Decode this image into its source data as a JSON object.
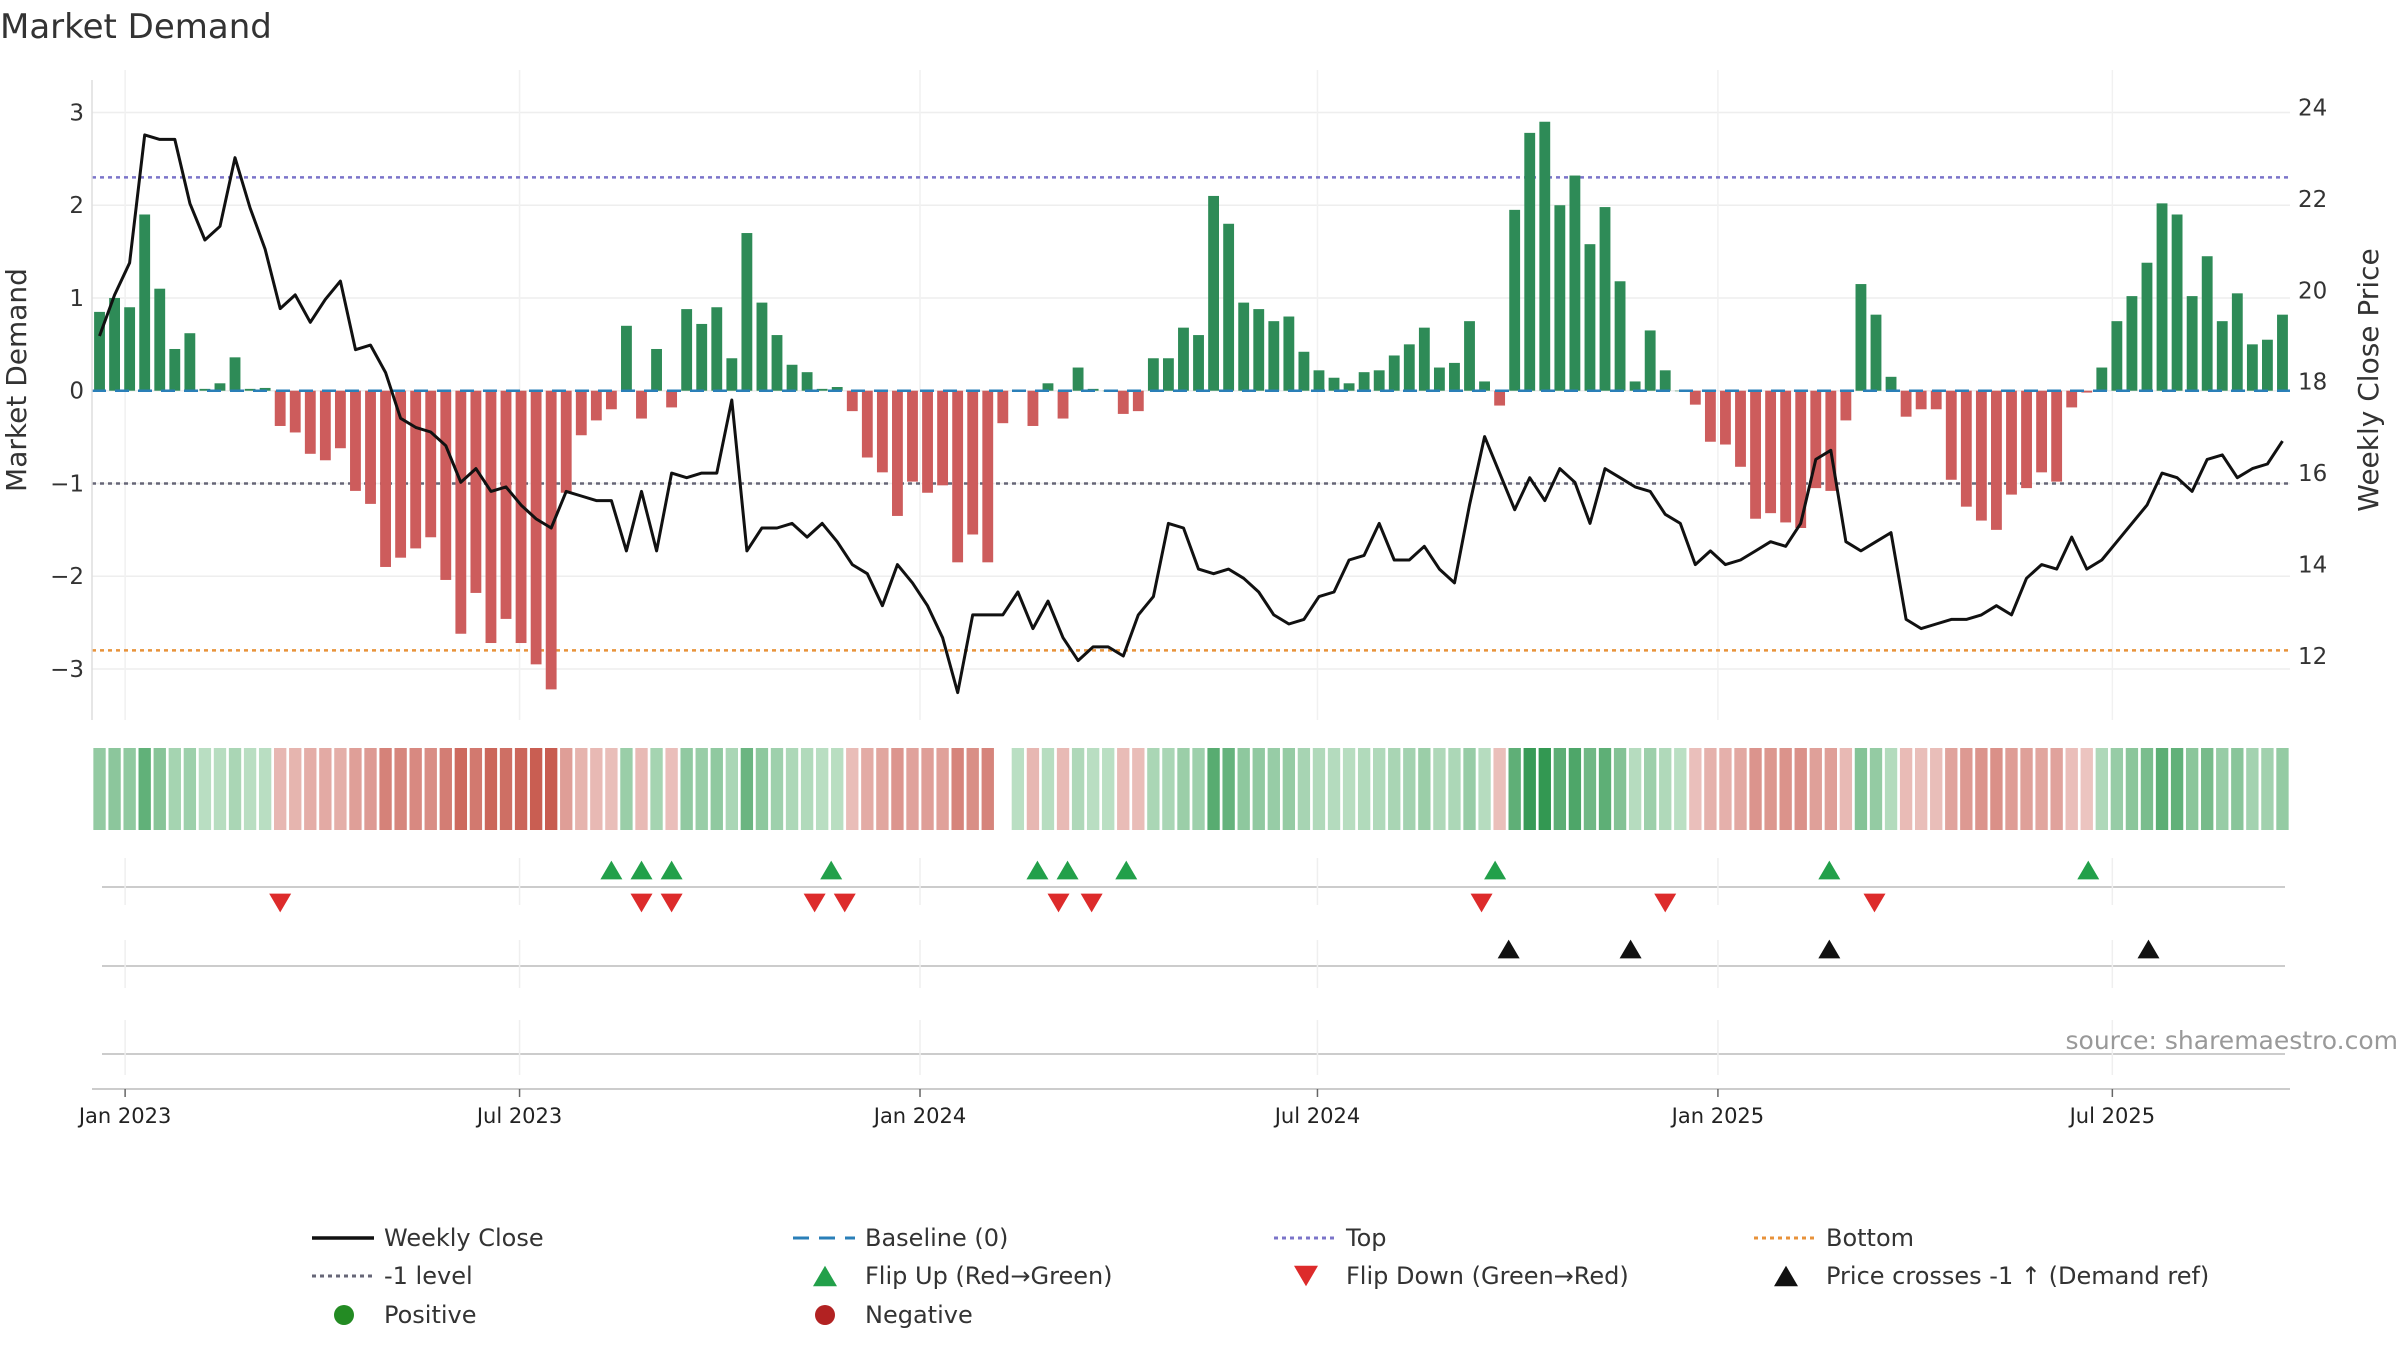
{
  "chart_data": {
    "type": "bar",
    "title": "Market Demand",
    "ylabel_left": "Market Demand",
    "ylabel_right": "Weekly Close Price",
    "ylim_left": [
      -3.55,
      3.35
    ],
    "ylim_right": [
      10.6,
      24.6
    ],
    "yticks_left": [
      3,
      2,
      1,
      0,
      -1,
      -2,
      -3
    ],
    "yticks_left_labels": [
      "3",
      "2",
      "1",
      "0",
      "−1",
      "−2",
      "−3"
    ],
    "yticks_right": [
      24,
      22,
      20,
      18,
      16,
      14,
      12
    ],
    "yticks_right_labels": [
      "24",
      "22",
      "20",
      "18",
      "16",
      "14",
      "12"
    ],
    "x_start_week_offset_days": -5,
    "x_range_weeks": [
      0,
      146
    ],
    "x_ticks": [
      {
        "label": "Jan 2023",
        "week": 2.2
      },
      {
        "label": "Jul 2023",
        "week": 28.4
      },
      {
        "label": "Jan 2024",
        "week": 55.0
      },
      {
        "label": "Jul 2024",
        "week": 81.4
      },
      {
        "label": "Jan 2025",
        "week": 108.0
      },
      {
        "label": "Jul 2025",
        "week": 134.2
      }
    ],
    "reference_lines": {
      "top": {
        "value": 2.3,
        "color": "#7b74c9"
      },
      "minus_one": {
        "value": -1.0,
        "color": "#666677"
      },
      "bottom": {
        "value": -2.8,
        "color": "#e8923a"
      },
      "baseline": {
        "value": 0,
        "color": "#2a7fb8"
      }
    },
    "demand": [
      0.85,
      1.0,
      0.9,
      1.9,
      1.1,
      0.45,
      0.62,
      0.02,
      0.08,
      0.36,
      0.02,
      0.03,
      -0.38,
      -0.45,
      -0.68,
      -0.75,
      -0.62,
      -1.08,
      -1.22,
      -1.9,
      -1.8,
      -1.7,
      -1.58,
      -2.04,
      -2.62,
      -2.18,
      -2.72,
      -2.46,
      -2.72,
      -2.95,
      -3.22,
      -1.1,
      -0.48,
      -0.32,
      -0.2,
      0.7,
      -0.3,
      0.45,
      -0.18,
      0.88,
      0.72,
      0.9,
      0.35,
      1.7,
      0.95,
      0.6,
      0.28,
      0.2,
      0.02,
      0.04,
      -0.22,
      -0.72,
      -0.88,
      -1.35,
      -0.98,
      -1.1,
      -1.02,
      -1.85,
      -1.55,
      -1.85,
      -0.35,
      0.0,
      -0.38,
      0.08,
      -0.3,
      0.25,
      0.02,
      0.0,
      -0.25,
      -0.22,
      0.35,
      0.35,
      0.68,
      0.6,
      2.1,
      1.8,
      0.95,
      0.88,
      0.75,
      0.8,
      0.42,
      0.22,
      0.14,
      0.08,
      0.2,
      0.22,
      0.38,
      0.5,
      0.68,
      0.25,
      0.3,
      0.75,
      0.1,
      -0.16,
      1.95,
      2.78,
      2.9,
      2.0,
      2.32,
      1.58,
      1.98,
      1.18,
      0.1,
      0.65,
      0.22,
      0.0,
      -0.15,
      -0.55,
      -0.58,
      -0.82,
      -1.38,
      -1.32,
      -1.42,
      -1.48,
      -1.05,
      -1.08,
      -0.32,
      1.15,
      0.82,
      0.15,
      -0.28,
      -0.2,
      -0.2,
      -0.96,
      -1.25,
      -1.4,
      -1.5,
      -1.12,
      -1.05,
      -0.88,
      -0.98,
      -0.18,
      -0.02,
      0.25,
      0.75,
      1.02,
      1.38,
      2.02,
      1.9,
      1.02,
      1.45,
      0.75,
      1.05,
      0.5,
      0.55,
      0.82
    ],
    "price": [
      19.0,
      19.9,
      20.6,
      23.4,
      23.3,
      23.3,
      21.9,
      21.1,
      21.4,
      22.9,
      21.8,
      20.9,
      19.6,
      19.9,
      19.3,
      19.8,
      20.2,
      18.7,
      18.8,
      18.2,
      17.2,
      17.0,
      16.9,
      16.6,
      15.8,
      16.1,
      15.6,
      15.7,
      15.3,
      15.0,
      14.8,
      15.6,
      15.5,
      15.4,
      15.4,
      14.3,
      15.6,
      14.3,
      16.0,
      15.9,
      16.0,
      16.0,
      17.6,
      14.3,
      14.8,
      14.8,
      14.9,
      14.6,
      14.9,
      14.5,
      14.0,
      13.8,
      13.1,
      14.0,
      13.6,
      13.1,
      12.4,
      11.2,
      12.9,
      12.9,
      12.9,
      13.4,
      12.6,
      13.2,
      12.4,
      11.9,
      12.2,
      12.2,
      12.0,
      12.9,
      13.3,
      14.9,
      14.8,
      13.9,
      13.8,
      13.9,
      13.7,
      13.4,
      12.9,
      12.7,
      12.8,
      13.3,
      13.4,
      14.1,
      14.2,
      14.9,
      14.1,
      14.1,
      14.4,
      13.9,
      13.6,
      15.3,
      16.8,
      16.0,
      15.2,
      15.9,
      15.4,
      16.1,
      15.8,
      14.9,
      16.1,
      15.9,
      15.7,
      15.6,
      15.1,
      14.9,
      14.0,
      14.3,
      14.0,
      14.1,
      14.3,
      14.5,
      14.4,
      14.9,
      16.3,
      16.5,
      14.5,
      14.3,
      14.5,
      14.7,
      12.8,
      12.6,
      12.7,
      12.8,
      12.8,
      12.9,
      13.1,
      12.9,
      13.7,
      14.0,
      13.9,
      14.6,
      13.9,
      14.1,
      14.5,
      14.9,
      15.3,
      16.0,
      15.9,
      15.6,
      16.3,
      16.4,
      15.9,
      16.1,
      16.2,
      16.7
    ],
    "heat_strip_note": "color strip under bars: green intensity for positive, red for negative",
    "heat_strip_gap_weeks": [
      60
    ],
    "flip_up_weeks": [
      34.5,
      36.5,
      38.5,
      49.1,
      62.8,
      64.8,
      68.7,
      93.2,
      115.4,
      132.6
    ],
    "flip_down_weeks": [
      12.5,
      36.5,
      38.5,
      48.0,
      50.0,
      64.2,
      66.4,
      92.3,
      104.5,
      118.4
    ],
    "price_cross_weeks": [
      94.1,
      102.2,
      115.4,
      136.6
    ],
    "colors": {
      "positive": "#2e8b57",
      "negative": "#cd5c5c",
      "price_line": "#111111",
      "flip_up": "#22a04a",
      "flip_down": "#dd2b2b",
      "price_cross": "#111111",
      "positive_dot": "#238b23",
      "negative_dot": "#b22222"
    },
    "legend": [
      {
        "label": "Weekly Close",
        "kind": "line-solid",
        "color": "#111111"
      },
      {
        "label": "Baseline (0)",
        "kind": "line-dash",
        "color": "#2a7fb8"
      },
      {
        "label": "Top",
        "kind": "line-dot",
        "color": "#7b74c9"
      },
      {
        "label": "Bottom",
        "kind": "line-dot",
        "color": "#e8923a"
      },
      {
        "label": "-1 level",
        "kind": "line-dot",
        "color": "#666677"
      },
      {
        "label": "Flip Up (Red→Green)",
        "kind": "tri-up",
        "color": "#22a04a"
      },
      {
        "label": "Flip Down (Green→Red)",
        "kind": "tri-down",
        "color": "#dd2b2b"
      },
      {
        "label": "Price crosses -1 ↑ (Demand ref)",
        "kind": "tri-up",
        "color": "#111111"
      },
      {
        "label": "Positive",
        "kind": "dot",
        "color": "#238b23"
      },
      {
        "label": "Negative",
        "kind": "dot",
        "color": "#b22222"
      }
    ],
    "source": "source: sharemaestro.com"
  }
}
